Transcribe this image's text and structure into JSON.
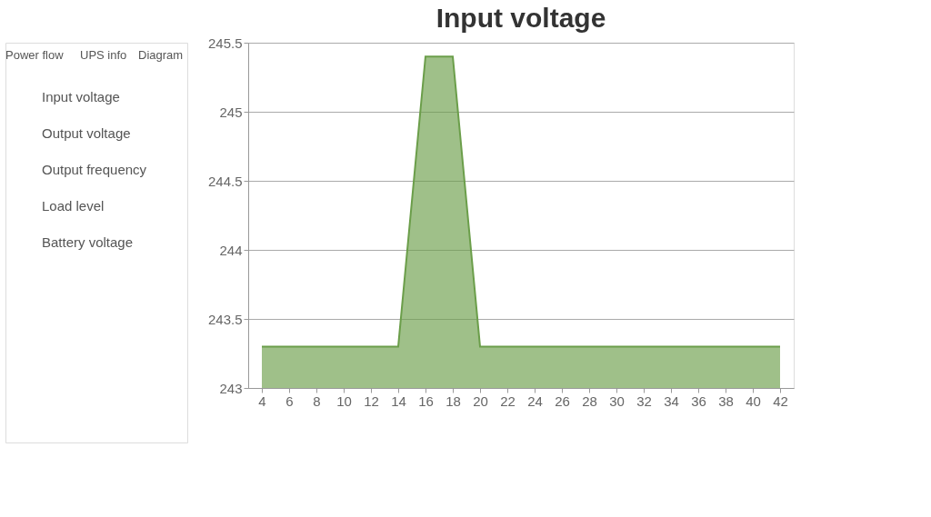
{
  "chart_data": {
    "type": "area",
    "title": "Input voltage",
    "categories": [
      "4",
      "6",
      "8",
      "10",
      "12",
      "14",
      "16",
      "18",
      "20",
      "22",
      "24",
      "26",
      "28",
      "30",
      "32",
      "34",
      "36",
      "38",
      "40",
      "42"
    ],
    "series": [
      {
        "color": "#6b9e4a",
        "values": [
          243.3,
          243.3,
          243.3,
          243.3,
          243.3,
          243.3,
          245.4,
          245.4,
          243.3,
          243.3,
          243.3,
          243.3,
          243.3,
          243.3,
          243.3,
          243.3,
          243.3,
          243.3,
          243.3,
          243.3
        ]
      }
    ],
    "ylim": [
      243,
      245.5
    ],
    "yticks": [
      243,
      243.5,
      244,
      244.5,
      245,
      245.5
    ],
    "grid": "y",
    "legend": false,
    "annotations": [
      "Power flow",
      "UPS info",
      "Diagram",
      "Input voltage",
      "Output voltage",
      "Output frequency",
      "Load level",
      "Battery voltage"
    ]
  }
}
